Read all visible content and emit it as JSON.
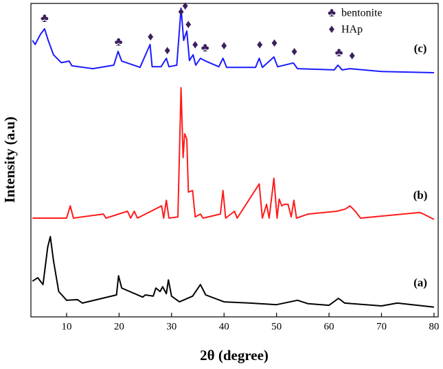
{
  "chart_data": {
    "type": "line",
    "x_label": "2θ (degree)",
    "y_label": "Intensity (a.u)",
    "xlim": [
      3.2,
      80.8
    ],
    "ylim": [
      0,
      100
    ],
    "xticks": [
      10,
      20,
      30,
      40,
      50,
      60,
      70,
      80
    ],
    "series": [
      {
        "name": "(a)",
        "color": "#000000",
        "x": [
          3.5,
          4.5,
          5.5,
          6.4,
          6.9,
          7.5,
          8.5,
          10,
          12.1,
          13,
          19.5,
          19.9,
          20.5,
          24.5,
          25,
          26.5,
          27,
          27.8,
          28.3,
          29,
          29.4,
          30,
          31.5,
          34,
          35.5,
          36.5,
          40,
          45,
          50,
          54,
          56,
          60,
          61.8,
          63,
          70,
          73,
          80
        ],
        "values": [
          11.4,
          12.5,
          10.3,
          22.3,
          25.6,
          17.9,
          8.1,
          5.3,
          5.5,
          4.4,
          7.0,
          13.1,
          9.2,
          6.3,
          7.0,
          6.6,
          9.2,
          8.1,
          9.6,
          7.4,
          11.8,
          6.6,
          4.8,
          6.6,
          10.3,
          7.0,
          4.8,
          4.4,
          3.9,
          5.3,
          4.2,
          3.7,
          5.9,
          4.4,
          3.5,
          4.4,
          3.1
        ]
      },
      {
        "name": "(b)",
        "color": "#ff1a1a",
        "x": [
          3.5,
          10,
          10.7,
          11.3,
          17,
          17.5,
          21.6,
          22.2,
          22.9,
          23.5,
          28.1,
          28.5,
          29,
          29.5,
          31.2,
          31.8,
          32.2,
          32.5,
          32.9,
          33.2,
          34,
          34.5,
          35.5,
          36,
          39.3,
          39.8,
          40.3,
          42,
          42.5,
          46.7,
          47.3,
          48.1,
          48.6,
          49.5,
          50.1,
          50.5,
          51,
          51.5,
          52.2,
          52.8,
          53.3,
          53.8,
          56,
          61.5,
          63.1,
          64,
          65,
          66,
          77.3,
          78,
          80
        ],
        "values": [
          31.5,
          31.5,
          35.4,
          31.5,
          32.8,
          31.5,
          33.7,
          31.5,
          33.7,
          31.5,
          35.4,
          31.5,
          37.2,
          31.5,
          31.9,
          73.1,
          50.8,
          58.4,
          56.7,
          39.8,
          40.3,
          31.9,
          32.8,
          31.5,
          32.8,
          40.3,
          31.5,
          33.7,
          31.5,
          42.4,
          31.5,
          35.9,
          31.5,
          44.2,
          31.5,
          37.6,
          35.4,
          35.9,
          35.9,
          31.9,
          37.2,
          31.5,
          32.8,
          33.7,
          34.4,
          35.4,
          33.7,
          31.5,
          33.3,
          32.8,
          31.1
        ]
      },
      {
        "name": "(c)",
        "color": "#1a1aff",
        "x": [
          3.5,
          4,
          5,
          5.8,
          6.5,
          7.5,
          9,
          10.5,
          11,
          15,
          19,
          19.8,
          20.5,
          24,
          25.9,
          26.3,
          28,
          29,
          29.5,
          31,
          31.8,
          32.3,
          32.9,
          33.4,
          34.1,
          34.6,
          35.5,
          36.5,
          39,
          39.8,
          40.5,
          46,
          46.7,
          47.3,
          49.5,
          50.2,
          53.2,
          54,
          61,
          61.7,
          62.5,
          64,
          70,
          80
        ],
        "values": [
          88.2,
          86.9,
          90.1,
          91.9,
          88.2,
          83.6,
          81.1,
          81.6,
          80.1,
          79.2,
          80.3,
          84.7,
          81.6,
          79.6,
          86.9,
          79.8,
          79.8,
          82.5,
          79.8,
          80.3,
          98.5,
          88.2,
          91.2,
          81.8,
          83.6,
          80.3,
          82.5,
          81.6,
          79.8,
          82.5,
          79.6,
          79.6,
          82.5,
          79.6,
          82.9,
          79.8,
          81.0,
          79.2,
          78.8,
          80.3,
          78.8,
          79.2,
          78.3,
          77.9
        ]
      }
    ],
    "annotations": [
      {
        "x": 5.8,
        "y": 95.0,
        "text": "♣"
      },
      {
        "x": 19.9,
        "y": 87.5,
        "text": "♣"
      },
      {
        "x": 26.0,
        "y": 89.1,
        "text": "♦"
      },
      {
        "x": 29.2,
        "y": 84.7,
        "text": "♦"
      },
      {
        "x": 31.8,
        "y": 97.1,
        "text": "♦"
      },
      {
        "x": 32.6,
        "y": 98.9,
        "text": "♦"
      },
      {
        "x": 33.2,
        "y": 93.0,
        "text": "♦"
      },
      {
        "x": 34.5,
        "y": 86.6,
        "text": "♦"
      },
      {
        "x": 36.4,
        "y": 85.6,
        "text": "♣"
      },
      {
        "x": 40.0,
        "y": 86.2,
        "text": "♦"
      },
      {
        "x": 46.8,
        "y": 86.6,
        "text": "♦"
      },
      {
        "x": 49.6,
        "y": 87.1,
        "text": "♦"
      },
      {
        "x": 53.4,
        "y": 84.4,
        "text": "♦"
      },
      {
        "x": 61.9,
        "y": 84.0,
        "text": "♣"
      },
      {
        "x": 64.4,
        "y": 83.1,
        "text": "♦"
      }
    ],
    "legend": [
      {
        "symbol": "♣",
        "label": "bentonite"
      },
      {
        "symbol": "♦",
        "label": "HAp"
      }
    ]
  }
}
